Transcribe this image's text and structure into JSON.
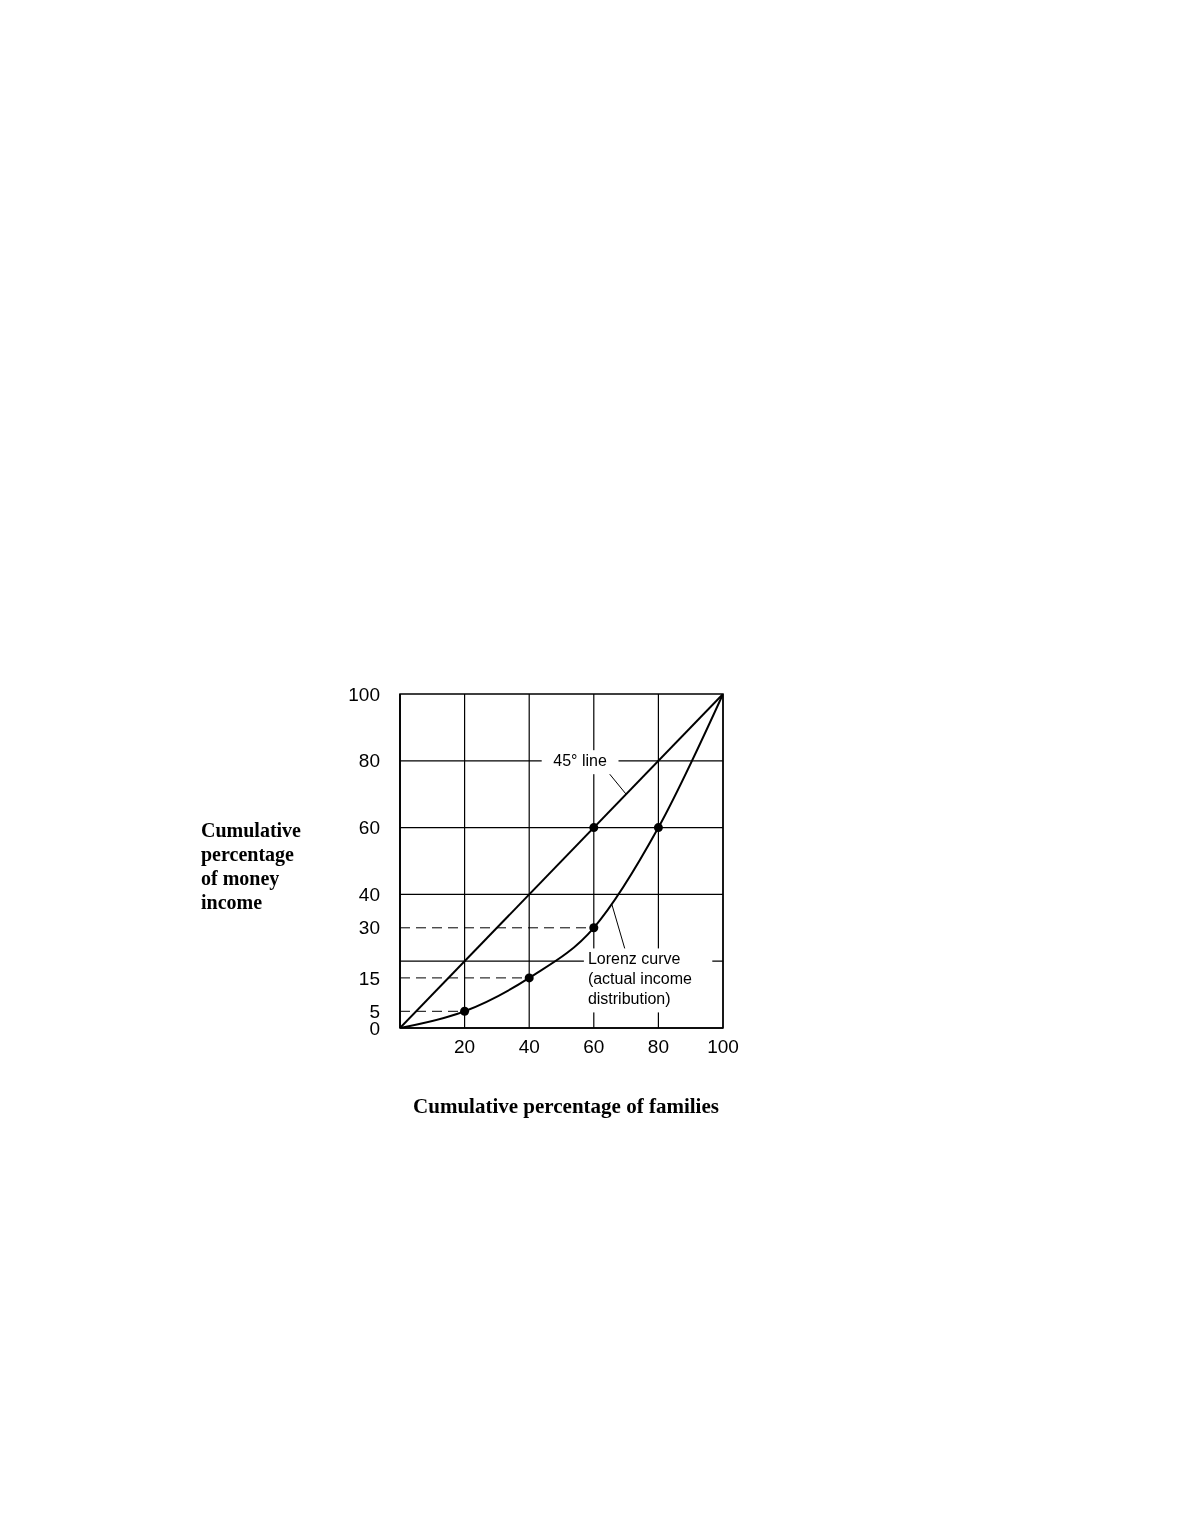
{
  "chart_data": {
    "type": "line",
    "xlabel": "Cumulative percentage of families",
    "ylabel": "Cumulative percentage of money income",
    "xlim": [
      0,
      100
    ],
    "ylim": [
      0,
      100
    ],
    "xticks": [
      {
        "value": 0,
        "label": null
      },
      20,
      40,
      60,
      80,
      100
    ],
    "yticks": [
      0,
      5,
      15,
      30,
      40,
      60,
      80,
      100
    ],
    "grid": "x",
    "ref_lines": [
      {
        "axis": "y",
        "value": 20,
        "color": "#000000",
        "line_style": "solid"
      },
      {
        "axis": "y",
        "value": 40,
        "color": "#000000",
        "line_style": "solid"
      },
      {
        "axis": "y",
        "value": 60,
        "color": "#000000",
        "line_style": "solid"
      },
      {
        "axis": "y",
        "value": 80,
        "color": "#000000",
        "line_style": "solid"
      }
    ],
    "series": [
      {
        "color": "#000000",
        "x": [
          0,
          100
        ],
        "values": [
          0,
          100
        ],
        "marker": "none",
        "line_style": "solid"
      },
      {
        "color": "#000000",
        "x": [
          0,
          20,
          40,
          60,
          80,
          100
        ],
        "values": [
          0,
          5,
          15,
          30,
          60,
          100
        ],
        "marker": "none",
        "line_style": "solid"
      },
      {
        "type": "scatter",
        "color": "#000000",
        "x": [
          20,
          40,
          60,
          80,
          60
        ],
        "values": [
          5,
          15,
          30,
          60,
          60
        ],
        "marker": "circle"
      },
      {
        "type": "line",
        "color": "#000000",
        "x": [
          0,
          20
        ],
        "values": [
          5,
          5
        ],
        "marker": "none",
        "line_style": "dashed"
      },
      {
        "type": "line",
        "color": "#000000",
        "x": [
          0,
          40
        ],
        "values": [
          15,
          15
        ],
        "marker": "none",
        "line_style": "dashed"
      },
      {
        "type": "line",
        "color": "#000000",
        "x": [
          0,
          60
        ],
        "values": [
          30,
          30
        ],
        "marker": "none",
        "line_style": "dashed"
      }
    ],
    "annotations": [
      {
        "text": "45° line",
        "x": 70,
        "y": 70
      },
      {
        "text": "Lorenz curve\n(actual income\ndistribution)",
        "x": 65.6,
        "y": 37
      }
    ]
  }
}
